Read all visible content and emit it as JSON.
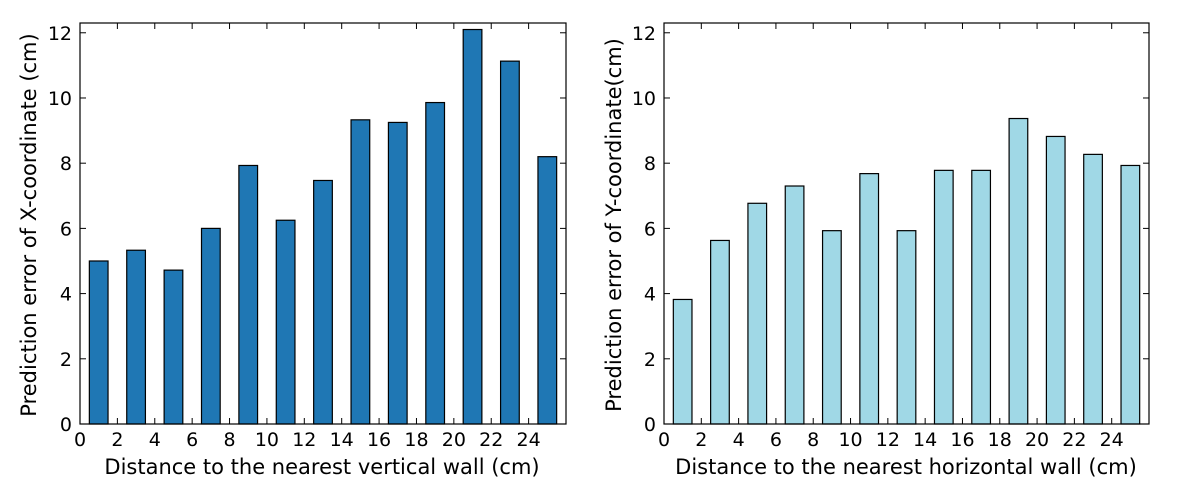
{
  "chart_data": [
    {
      "type": "bar",
      "xlabel": "Distance to the nearest vertical wall (cm)",
      "ylabel": "Prediction error of X-coordinate (cm)",
      "x": [
        1,
        3,
        5,
        7,
        9,
        11,
        13,
        15,
        17,
        19,
        21,
        23,
        25
      ],
      "values": [
        5.0,
        5.33,
        4.72,
        6.0,
        7.93,
        6.25,
        7.47,
        9.33,
        9.25,
        9.86,
        12.1,
        11.13,
        8.2
      ],
      "xlim": [
        0,
        26
      ],
      "ylim": [
        0,
        12.3
      ],
      "xticks": [
        "0",
        "2",
        "4",
        "6",
        "8",
        "10",
        "12",
        "14",
        "16",
        "18",
        "20",
        "22",
        "24"
      ],
      "yticks": [
        "0",
        "2",
        "4",
        "6",
        "8",
        "10",
        "12"
      ],
      "bar_color": "#1f77b4",
      "grid": false
    },
    {
      "type": "bar",
      "xlabel": "Distance to the nearest horizontal wall (cm)",
      "ylabel": "Prediction error of Y-coordinate(cm)",
      "x": [
        1,
        3,
        5,
        7,
        9,
        11,
        13,
        15,
        17,
        19,
        21,
        23,
        25
      ],
      "values": [
        3.82,
        5.63,
        6.77,
        7.3,
        5.93,
        7.68,
        5.93,
        7.78,
        7.78,
        9.37,
        8.82,
        8.27,
        7.93
      ],
      "xlim": [
        0,
        26
      ],
      "ylim": [
        0,
        12.3
      ],
      "xticks": [
        "0",
        "2",
        "4",
        "6",
        "8",
        "10",
        "12",
        "14",
        "16",
        "18",
        "20",
        "22",
        "24"
      ],
      "yticks": [
        "0",
        "2",
        "4",
        "6",
        "8",
        "10",
        "12"
      ],
      "bar_color": "#a0d8e6",
      "grid": false
    }
  ]
}
